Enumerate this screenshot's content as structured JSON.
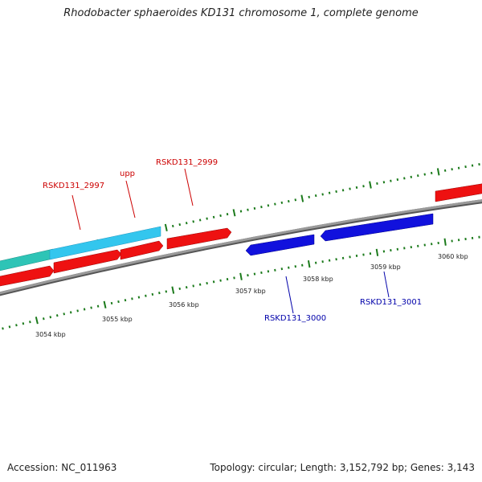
{
  "title": "Rhodobacter sphaeroides KD131 chromosome 1, complete genome",
  "footer": {
    "accession": "Accession: NC_011963",
    "summary": "Topology: circular; Length: 3,152,792 bp; Genes: 3,143"
  },
  "colors": {
    "forward_gene": "#ee1111",
    "reverse_gene": "#1111dd",
    "rna_gene": "#33c6ee",
    "rna_gene_alt": "#2ec4b6",
    "backbone": "#8c8c8c",
    "ticks": "#1b7a1b",
    "forward_label": "#cc0000",
    "reverse_label": "#0000aa"
  },
  "gene_labels": {
    "g2997": "RSKD131_2997",
    "upp": "upp",
    "g2999": "RSKD131_2999",
    "g3000": "RSKD131_3000",
    "g3001": "RSKD131_3001"
  },
  "kbp_labels": {
    "k3054": "3054 kbp",
    "k3055": "3055 kbp",
    "k3056": "3056 kbp",
    "k3057": "3057 kbp",
    "k3058": "3058 kbp",
    "k3059": "3059 kbp",
    "k3060": "3060 kbp"
  }
}
